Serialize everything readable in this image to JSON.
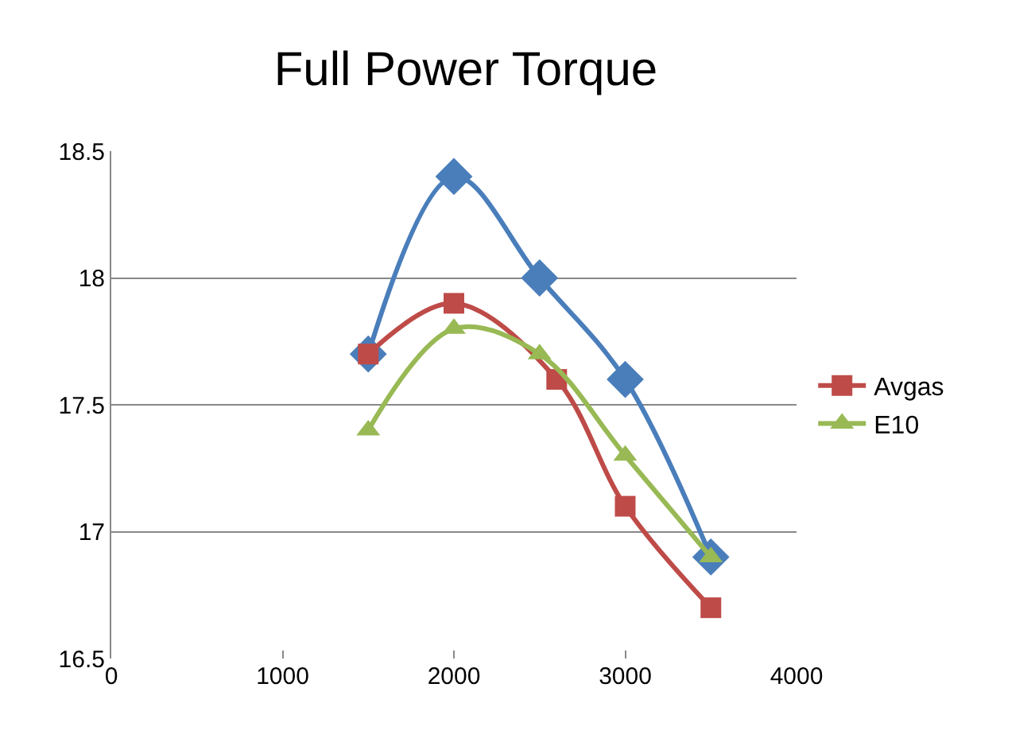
{
  "chart_data": {
    "type": "line",
    "title": "Full Power Torque",
    "series": [
      {
        "color": "#4a7ebb",
        "marker": "diamond",
        "x": [
          1500,
          2000,
          2500,
          3000,
          3500
        ],
        "values": [
          17.7,
          18.4,
          18.0,
          17.6,
          16.9
        ]
      },
      {
        "name": "Avgas",
        "color": "#be4b48",
        "marker": "square",
        "x": [
          1500,
          2000,
          2600,
          3000,
          3500
        ],
        "values": [
          17.7,
          17.9,
          17.6,
          17.1,
          16.7
        ]
      },
      {
        "name": "E10",
        "color": "#98b954",
        "marker": "triangle",
        "x": [
          1500,
          2000,
          2500,
          3000,
          3500
        ],
        "values": [
          17.4,
          17.8,
          17.7,
          17.3,
          16.9
        ]
      }
    ],
    "xlim": [
      0,
      4000
    ],
    "xticks": [
      0,
      1000,
      2000,
      3000,
      4000
    ],
    "ylim": [
      16.5,
      18.5
    ],
    "yticks": [
      16.5,
      17,
      17.5,
      18,
      18.5
    ],
    "grid": "y",
    "legend": "right"
  }
}
